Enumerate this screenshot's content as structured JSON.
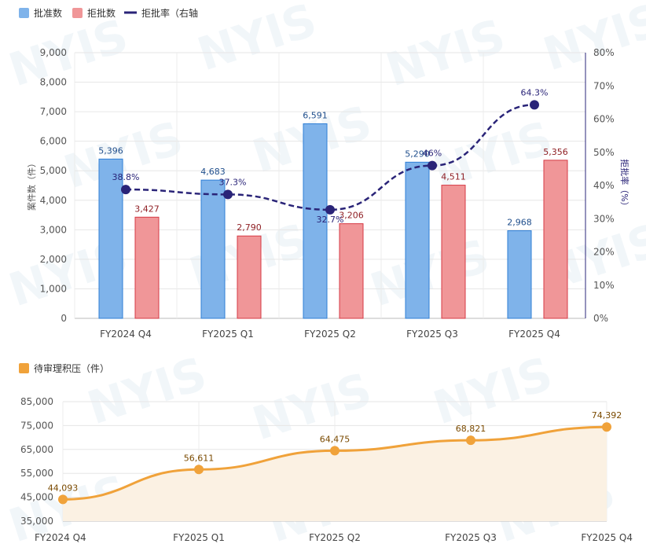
{
  "colors": {
    "approved": "#7fb3ea",
    "approved_stroke": "#2f7fd6",
    "rejected": "#f09698",
    "rejected_stroke": "#d63a44",
    "rate": "#2a2478",
    "backlog": "#f0a23a",
    "backlog_fill": "#fbf1e3",
    "approved_label": "#1f4e8c",
    "rejected_label": "#8f1f24",
    "backlog_label": "#7a4a00"
  },
  "watermark": "NYIS",
  "chart_data": [
    {
      "type": "bar",
      "categories": [
        "FY2024 Q4",
        "FY2025 Q1",
        "FY2025 Q2",
        "FY2025 Q3",
        "FY2025 Q4"
      ],
      "series": [
        {
          "name": "批准数",
          "type": "bar",
          "values": [
            5396,
            4683,
            6591,
            5290,
            2968
          ],
          "labels": [
            "5,396",
            "4,683",
            "6,591",
            "5,290",
            "2,968"
          ]
        },
        {
          "name": "拒批数",
          "type": "bar",
          "values": [
            3427,
            2790,
            3206,
            4511,
            5356
          ],
          "labels": [
            "3,427",
            "2,790",
            "3,206",
            "4,511",
            "5,356"
          ]
        },
        {
          "name": "拒批率（右轴",
          "type": "line",
          "axis": "right",
          "style": "dashed",
          "values": [
            38.8,
            37.3,
            32.7,
            46.0,
            64.3
          ],
          "labels": [
            "38.8%",
            "37.3%",
            "32.7%",
            "46%",
            "64.3%"
          ]
        }
      ],
      "ylabel": "案件数（件）",
      "ylabel_right": "拒批率（%）",
      "ylim": [
        0,
        9000
      ],
      "ylim_right": [
        0,
        80
      ],
      "yticks": [
        "0",
        "1,000",
        "2,000",
        "3,000",
        "4,000",
        "5,000",
        "6,000",
        "7,000",
        "8,000",
        "9,000"
      ],
      "yticks_right": [
        "0%",
        "10%",
        "20%",
        "30%",
        "40%",
        "50%",
        "60%",
        "70%",
        "80%"
      ],
      "legend": "top-left",
      "grid": true
    },
    {
      "type": "area",
      "categories": [
        "FY2024 Q4",
        "FY2025 Q1",
        "FY2025 Q2",
        "FY2025 Q3",
        "FY2025 Q4"
      ],
      "series": [
        {
          "name": "待审理积压（件）",
          "values": [
            44093,
            56611,
            64475,
            68821,
            74392
          ],
          "labels": [
            "44,093",
            "56,611",
            "64,475",
            "68,821",
            "74,392"
          ]
        }
      ],
      "ylim": [
        35000,
        85000
      ],
      "yticks": [
        "35,000",
        "45,000",
        "55,000",
        "65,000",
        "75,000",
        "85,000"
      ],
      "legend": "top-left",
      "grid": true
    }
  ]
}
